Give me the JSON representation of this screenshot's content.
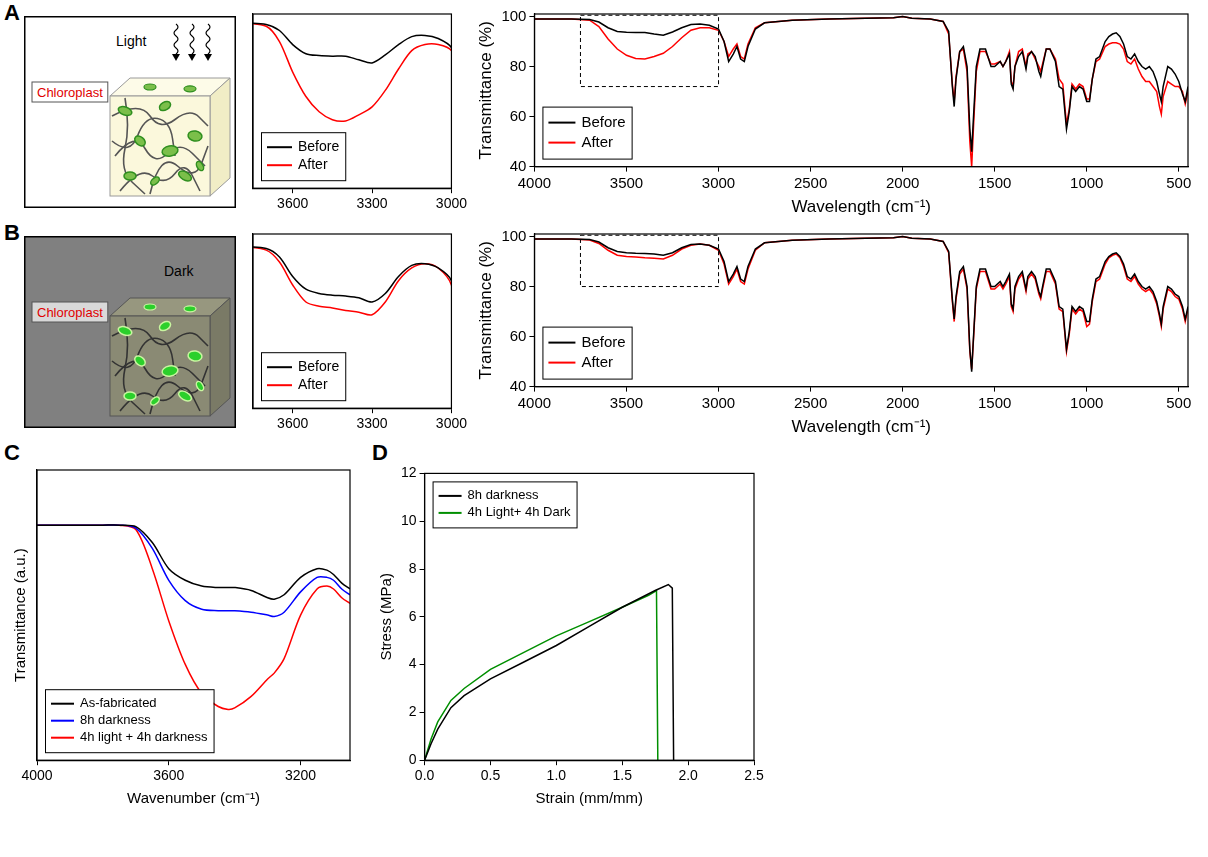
{
  "diagrams": [
    {
      "panel": "A",
      "condition": "Light",
      "callout": "Chloroplast"
    },
    {
      "panel": "B",
      "condition": "Dark",
      "callout": "Chloroplast"
    }
  ],
  "chart_data": [
    {
      "panel": "A",
      "type": "line",
      "x_label": "Wavelength (cm⁻¹)",
      "y_label": "Transmittance (%)",
      "x": [
        4000,
        3800,
        3700,
        3650,
        3600,
        3550,
        3500,
        3450,
        3400,
        3350,
        3300,
        3250,
        3200,
        3150,
        3100,
        3050,
        3000,
        2970,
        2945,
        2920,
        2900,
        2880,
        2860,
        2840,
        2800,
        2750,
        2600,
        2400,
        2200,
        2050,
        2000,
        1950,
        1850,
        1780,
        1750,
        1730,
        1720,
        1710,
        1690,
        1670,
        1650,
        1635,
        1625,
        1615,
        1600,
        1580,
        1550,
        1520,
        1500,
        1470,
        1455,
        1440,
        1420,
        1410,
        1400,
        1390,
        1370,
        1350,
        1330,
        1320,
        1300,
        1280,
        1260,
        1250,
        1240,
        1220,
        1200,
        1170,
        1150,
        1130,
        1110,
        1095,
        1080,
        1060,
        1040,
        1020,
        1000,
        985,
        970,
        950,
        930,
        900,
        880,
        860,
        840,
        820,
        800,
        780,
        760,
        740,
        720,
        700,
        680,
        660,
        640,
        620,
        605,
        595,
        585,
        560,
        540,
        520,
        500,
        480,
        465,
        450
      ],
      "series": [
        {
          "name": "Before",
          "color": "#000000",
          "values": [
            99,
            99,
            98.8,
            97.8,
            95.5,
            94,
            93.7,
            93.6,
            93.6,
            93,
            92.5,
            93.8,
            95.5,
            96.8,
            97,
            96.5,
            95,
            90,
            82,
            85,
            88,
            83,
            82,
            88,
            95,
            97.5,
            98.5,
            99,
            99.3,
            99.5,
            100,
            99.3,
            99,
            98,
            94,
            72,
            64,
            75,
            86,
            88,
            80,
            55,
            46,
            60,
            80,
            87,
            87,
            80,
            80,
            82,
            80,
            82,
            85,
            73,
            71,
            80,
            84,
            86,
            79,
            84,
            86,
            84,
            78,
            76,
            80,
            87,
            87,
            82,
            72,
            71,
            55,
            62,
            72,
            70,
            72,
            71,
            66,
            66,
            75,
            83,
            84,
            90,
            92,
            93,
            93.5,
            92,
            89,
            84,
            83,
            85,
            82,
            80,
            79,
            80,
            78,
            74,
            69,
            66,
            72,
            80,
            79,
            77,
            74,
            69,
            66,
            72
          ]
        },
        {
          "name": "After",
          "color": "#ff0000",
          "values": [
            99,
            99,
            98.5,
            96,
            91,
            87,
            84.5,
            83.2,
            83,
            84,
            85.3,
            88,
            91.5,
            94.5,
            95.5,
            95.5,
            94.5,
            90,
            84,
            87,
            89,
            84,
            83,
            89,
            95.5,
            97.5,
            98.5,
            99,
            99.3,
            99.5,
            100,
            99.3,
            99,
            98,
            93,
            73,
            66,
            76,
            86,
            87,
            78,
            50,
            40,
            56,
            78,
            86,
            86,
            81,
            81,
            82,
            80,
            82,
            86,
            74,
            72,
            80,
            86,
            87,
            80,
            85,
            86,
            83,
            80,
            78,
            81,
            87,
            87,
            83,
            75,
            73,
            57,
            63,
            73,
            71,
            73,
            72,
            67,
            67,
            75,
            82,
            83,
            88,
            89,
            89.5,
            89.5,
            89,
            87,
            82,
            81,
            83,
            79,
            76,
            74,
            74,
            72,
            70,
            64,
            61,
            68,
            74,
            73,
            72,
            72,
            70,
            65,
            70
          ]
        }
      ],
      "xlim": [
        4000,
        450
      ],
      "xticks": [
        4000,
        3500,
        3000,
        2500,
        2000,
        1500,
        1000,
        500
      ],
      "ylim": [
        40,
        101
      ],
      "yticks": [
        40,
        60,
        80,
        100
      ],
      "grid": false,
      "legend": "lower left",
      "inset": {
        "xlim": [
          3750,
          3000
        ],
        "xticks": [
          3600,
          3300,
          3000
        ],
        "ylim": [
          72,
          100.5
        ],
        "tick_labels": "x",
        "legend": "lower left"
      }
    },
    {
      "panel": "B",
      "type": "line",
      "x_label": "Wavelength (cm⁻¹)",
      "y_label": "Transmittance (%)",
      "x": [
        4000,
        3800,
        3700,
        3650,
        3600,
        3550,
        3500,
        3450,
        3400,
        3350,
        3300,
        3250,
        3200,
        3150,
        3100,
        3050,
        3000,
        2970,
        2945,
        2920,
        2900,
        2880,
        2860,
        2840,
        2800,
        2750,
        2600,
        2400,
        2200,
        2050,
        2000,
        1950,
        1850,
        1780,
        1750,
        1730,
        1720,
        1710,
        1690,
        1670,
        1650,
        1635,
        1625,
        1615,
        1600,
        1580,
        1550,
        1520,
        1500,
        1470,
        1455,
        1440,
        1420,
        1410,
        1400,
        1390,
        1370,
        1350,
        1330,
        1320,
        1300,
        1280,
        1260,
        1250,
        1240,
        1220,
        1200,
        1170,
        1150,
        1130,
        1110,
        1095,
        1080,
        1060,
        1040,
        1020,
        1000,
        985,
        970,
        950,
        930,
        900,
        880,
        860,
        840,
        820,
        800,
        780,
        760,
        740,
        720,
        700,
        680,
        660,
        640,
        620,
        605,
        595,
        585,
        560,
        540,
        520,
        500,
        480,
        465,
        450
      ],
      "series": [
        {
          "name": "Before",
          "color": "#000000",
          "values": [
            99,
            99,
            98.8,
            97.8,
            95.5,
            94,
            93.5,
            93.3,
            93.2,
            93,
            92.5,
            93.5,
            95.5,
            96.8,
            97,
            96.5,
            95,
            90,
            82,
            85,
            88,
            83,
            82,
            88,
            95,
            97.5,
            98.5,
            99,
            99.3,
            99.5,
            100,
            99.3,
            99,
            98,
            94,
            75,
            67,
            76,
            86,
            88,
            80,
            55,
            46,
            60,
            80,
            87,
            87,
            80,
            80,
            82,
            80,
            82,
            85,
            73,
            71,
            80,
            84,
            86,
            79,
            84,
            86,
            84,
            78,
            76,
            80,
            87,
            87,
            82,
            72,
            71,
            55,
            62,
            72,
            70,
            72,
            71,
            66,
            66,
            75,
            83,
            84,
            90,
            92,
            93,
            93.5,
            92,
            89,
            84,
            83,
            85,
            82,
            80,
            79,
            80,
            78,
            74,
            69,
            65,
            72,
            80,
            79,
            77,
            76,
            72,
            67,
            72
          ]
        },
        {
          "name": "After",
          "color": "#ff0000",
          "values": [
            99,
            99,
            98.6,
            97.2,
            94.5,
            92.5,
            92,
            91.8,
            91.5,
            91.3,
            91,
            92.5,
            95,
            96.5,
            97,
            96.5,
            94.5,
            89,
            81,
            84,
            87,
            82,
            81,
            87,
            94.5,
            97.5,
            98.5,
            99,
            99.3,
            99.5,
            100,
            99.3,
            99,
            98,
            93.5,
            74,
            66,
            75,
            85,
            87,
            79,
            54,
            47,
            59,
            79,
            86,
            86,
            79,
            79,
            81,
            79,
            81,
            84,
            72,
            70,
            79,
            83,
            85,
            78,
            83,
            85,
            83,
            77,
            75,
            79,
            86,
            86,
            81,
            71,
            70,
            54,
            61,
            71,
            69,
            71,
            70,
            64,
            65,
            74,
            82,
            83,
            89,
            91.5,
            92.5,
            93,
            91.5,
            88,
            83,
            82,
            84,
            81,
            79,
            78,
            79,
            77,
            73,
            68,
            64,
            71,
            79,
            78,
            76,
            75,
            71,
            66,
            71
          ]
        }
      ],
      "xlim": [
        4000,
        450
      ],
      "xticks": [
        4000,
        3500,
        3000,
        2500,
        2000,
        1500,
        1000,
        500
      ],
      "ylim": [
        40,
        101
      ],
      "yticks": [
        40,
        60,
        80,
        100
      ],
      "grid": false,
      "legend": "lower left",
      "inset": {
        "xlim": [
          3750,
          3000
        ],
        "xticks": [
          3600,
          3300,
          3000
        ],
        "ylim": [
          80,
          100.5
        ],
        "tick_labels": "x",
        "legend": "lower left"
      }
    },
    {
      "panel": "C",
      "type": "line",
      "x_label": "Wavenumber (cm⁻¹)",
      "y_label": "Transmittance (a.u.)",
      "x": [
        4000,
        3900,
        3800,
        3750,
        3700,
        3650,
        3600,
        3550,
        3500,
        3450,
        3420,
        3400,
        3350,
        3300,
        3280,
        3250,
        3200,
        3150,
        3120,
        3100,
        3075,
        3050
      ],
      "series": [
        {
          "name": "As-fabricated",
          "color": "#000000",
          "values": [
            81,
            81,
            81,
            81,
            80.5,
            75,
            66,
            62,
            60,
            59.5,
            59.5,
            59.5,
            58.5,
            56,
            55.5,
            57,
            63,
            66,
            65.5,
            64,
            61,
            59
          ]
        },
        {
          "name": "8h darkness",
          "color": "#0000ff",
          "values": [
            81,
            81,
            81,
            81,
            80,
            73,
            62,
            55,
            52,
            51.5,
            51.5,
            51.5,
            51,
            50,
            49.5,
            51,
            58,
            63,
            63,
            62,
            59,
            57
          ]
        },
        {
          "name": "4h light + 4h darkness",
          "color": "#ff0000",
          "values": [
            81,
            81,
            81,
            81,
            79.5,
            66,
            48,
            33,
            23,
            18.5,
            17.5,
            18,
            22,
            28,
            30,
            35,
            50,
            59,
            60,
            59,
            56,
            54
          ]
        }
      ],
      "xlim": [
        4000,
        3050
      ],
      "xticks": [
        4000,
        3600,
        3200
      ],
      "ylim": [
        0,
        100
      ],
      "tick_labels": "x",
      "grid": false,
      "legend": "lower left"
    },
    {
      "panel": "D",
      "type": "line",
      "x_label": "Strain (mm/mm)",
      "y_label": "Stress (MPa)",
      "series": [
        {
          "name": "8h darkness",
          "color": "#000000",
          "x": [
            0,
            0.05,
            0.1,
            0.2,
            0.3,
            0.5,
            0.75,
            1.0,
            1.25,
            1.5,
            1.75,
            1.85,
            1.88,
            1.89
          ],
          "values": [
            0,
            0.7,
            1.3,
            2.2,
            2.7,
            3.4,
            4.1,
            4.8,
            5.6,
            6.4,
            7.1,
            7.35,
            7.2,
            0
          ]
        },
        {
          "name": "4h Light+ 4h Dark",
          "color": "#008f00",
          "x": [
            0,
            0.05,
            0.1,
            0.2,
            0.3,
            0.5,
            0.75,
            1.0,
            1.25,
            1.5,
            1.7,
            1.76,
            1.77
          ],
          "values": [
            0,
            0.9,
            1.6,
            2.5,
            3.0,
            3.8,
            4.5,
            5.2,
            5.8,
            6.4,
            6.9,
            7.1,
            0
          ]
        }
      ],
      "xlim": [
        0,
        2.5
      ],
      "xticks": [
        {
          "value": 0,
          "label": "0.0"
        },
        0.5,
        {
          "value": 1,
          "label": "1.0"
        },
        1.5,
        {
          "value": 2,
          "label": "2.0"
        },
        2.5
      ],
      "ylim": [
        0,
        12
      ],
      "yticks": [
        0,
        2,
        4,
        6,
        8,
        10,
        12
      ],
      "grid": false,
      "legend": "upper left"
    }
  ]
}
